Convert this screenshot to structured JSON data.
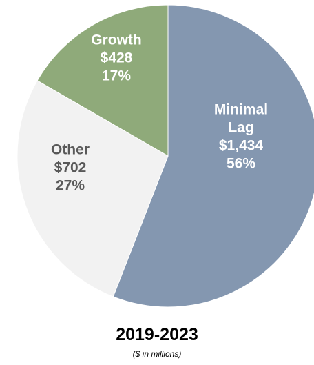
{
  "chart_data": {
    "type": "pie",
    "title": "2019-2023",
    "subtitle": "($ in millions)",
    "slices": [
      {
        "label_lines": [
          "Minimal",
          "Lag"
        ],
        "value": 1434,
        "value_label": "$1,434",
        "percent_label": "56%",
        "color": "#8497B0",
        "text_color": "#FFFFFF"
      },
      {
        "label_lines": [
          "Other"
        ],
        "value": 702,
        "value_label": "$702",
        "percent_label": "27%",
        "color": "#F2F2F2",
        "text_color": "#595959"
      },
      {
        "label_lines": [
          "Growth"
        ],
        "value": 428,
        "value_label": "$428",
        "percent_label": "17%",
        "color": "#8FAA7A",
        "text_color": "#FFFFFF"
      }
    ],
    "start": "12 o'clock",
    "direction": "clockwise",
    "legend": "none"
  }
}
